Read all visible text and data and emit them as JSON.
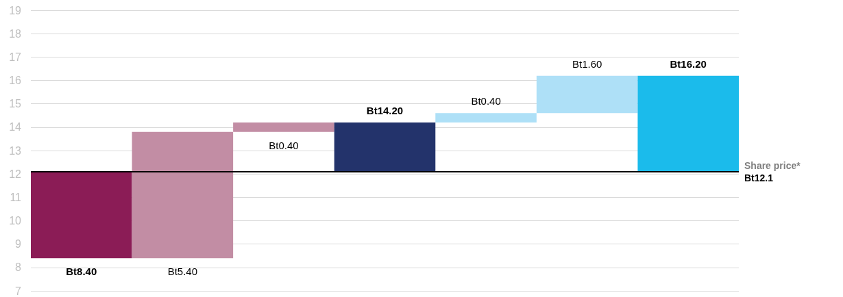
{
  "chart_data": {
    "type": "bar",
    "categories": [
      null,
      null,
      null,
      null,
      null,
      null,
      null
    ],
    "base": [
      8.4,
      8.4,
      13.8,
      12.1,
      14.2,
      14.6,
      12.1
    ],
    "values": [
      3.7,
      5.4,
      0.4,
      2.1,
      0.4,
      1.6,
      4.1
    ],
    "colors": [
      "#8b1c56",
      "#c28da4",
      "#c28da4",
      "#23336b",
      "#aee0f7",
      "#aee0f7",
      "#1bbbeb"
    ],
    "value_labels": [
      "Bt8.40",
      "Bt5.40",
      "Bt0.40",
      "Bt14.20",
      "Bt0.40",
      "Bt1.60",
      "Bt16.20"
    ],
    "ylim": [
      7,
      19
    ],
    "yticks": [
      7,
      8,
      9,
      10,
      11,
      12,
      13,
      14,
      15,
      16,
      17,
      18,
      19
    ],
    "grid": "y",
    "ref_lines": [
      {
        "axis": "y",
        "value": 12.1,
        "label": "Share price*\nBt12.1",
        "color": "#000000"
      }
    ]
  }
}
